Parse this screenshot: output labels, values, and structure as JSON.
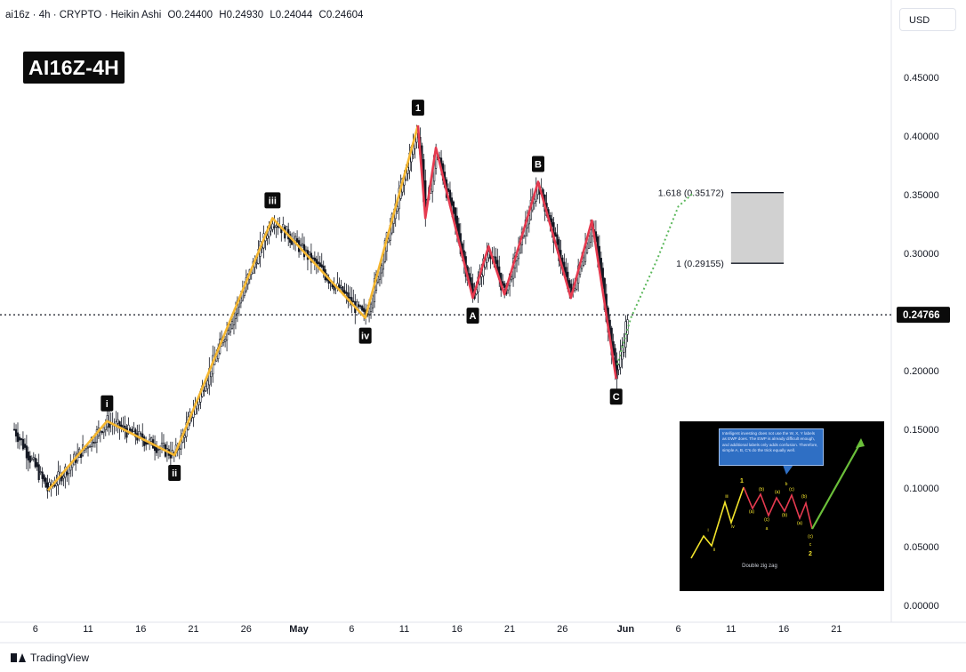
{
  "header": {
    "symbol": "ai16z · 4h · CRYPTO · Heikin Ashi",
    "open": "O0.24400",
    "high": "H0.24930",
    "low": "L0.24044",
    "close": "C0.24604"
  },
  "currency_button": "USD",
  "title_badge": "AI16Z-4H",
  "brand": "TradingView",
  "inset": {
    "note": "Intelligent investing does not use the W, X, Y labels as EWP does. The EWP is already difficult enough, and additional labels only adds confusion. Therefore, simple A, B, C's do the trick equally well.",
    "caption": "Double zig zag",
    "labels": [
      "i",
      "ii",
      "iii",
      "iv",
      "1",
      "(a)",
      "(b)",
      "(c)",
      "a",
      "(a)",
      "(b)",
      "(c)",
      "b",
      "(a)",
      "(b)",
      "(c)",
      "c",
      "2"
    ]
  },
  "colors": {
    "impulse": "#f5b731",
    "correction": "#e53a4f",
    "projection": "#5cb85c",
    "candle": "#131722",
    "target_zone": "#c9c9c9",
    "price_tag": "#0b0b0b"
  },
  "chart_data": {
    "type": "line",
    "style": "Heikin Ashi candlesticks with Elliott Wave annotations",
    "ylim": [
      0.0,
      0.5
    ],
    "y_ticks": [
      "0.45000",
      "0.40000",
      "0.35000",
      "0.30000",
      "0.25000",
      "0.20000",
      "0.15000",
      "0.10000",
      "0.05000",
      "0.00000"
    ],
    "x_ticks": [
      {
        "label": "6",
        "day": -25
      },
      {
        "label": "11",
        "day": -20
      },
      {
        "label": "16",
        "day": -15
      },
      {
        "label": "21",
        "day": -10
      },
      {
        "label": "26",
        "day": -5
      },
      {
        "label": "May",
        "day": 0
      },
      {
        "label": "6",
        "day": 5
      },
      {
        "label": "11",
        "day": 10
      },
      {
        "label": "16",
        "day": 15
      },
      {
        "label": "21",
        "day": 20
      },
      {
        "label": "26",
        "day": 25
      },
      {
        "label": "Jun",
        "day": 31
      },
      {
        "label": "6",
        "day": 36
      },
      {
        "label": "11",
        "day": 41
      },
      {
        "label": "16",
        "day": 46
      },
      {
        "label": "21",
        "day": 51
      }
    ],
    "current_price": 0.24766,
    "current_price_label": "0.24766",
    "impulse_wave": [
      {
        "day": -23.8,
        "price": 0.098,
        "label": ""
      },
      {
        "day": -18.2,
        "price": 0.157,
        "label": "i"
      },
      {
        "day": -11.8,
        "price": 0.128,
        "label": "ii"
      },
      {
        "day": -2.5,
        "price": 0.33,
        "label": "iii"
      },
      {
        "day": 6.3,
        "price": 0.245,
        "label": "iv"
      },
      {
        "day": 11.3,
        "price": 0.409,
        "label": "1"
      }
    ],
    "correction_wave": [
      {
        "day": 11.3,
        "price": 0.409,
        "label": ""
      },
      {
        "day": 12.0,
        "price": 0.33,
        "label": ""
      },
      {
        "day": 13.0,
        "price": 0.39,
        "label": ""
      },
      {
        "day": 16.5,
        "price": 0.262,
        "label": "A"
      },
      {
        "day": 18.0,
        "price": 0.306,
        "label": ""
      },
      {
        "day": 19.5,
        "price": 0.265,
        "label": ""
      },
      {
        "day": 22.7,
        "price": 0.361,
        "label": "B"
      },
      {
        "day": 25.8,
        "price": 0.262,
        "label": ""
      },
      {
        "day": 27.8,
        "price": 0.328,
        "label": ""
      },
      {
        "day": 30.1,
        "price": 0.193,
        "label": "C"
      }
    ],
    "projection": [
      {
        "day": 30.2,
        "price": 0.205
      },
      {
        "day": 31.5,
        "price": 0.245
      },
      {
        "day": 34.0,
        "price": 0.295
      },
      {
        "day": 36.0,
        "price": 0.34
      },
      {
        "day": 37.5,
        "price": 0.352
      }
    ],
    "fib_levels": [
      {
        "ratio": "1.618",
        "price": 0.35172,
        "label": "1.618 (0.35172)"
      },
      {
        "ratio": "1",
        "price": 0.29155,
        "label": "1 (0.29155)"
      }
    ],
    "target_zone": {
      "day_start": 41.0,
      "day_end": 46.0,
      "price_low": 0.29155,
      "price_high": 0.35172
    }
  }
}
